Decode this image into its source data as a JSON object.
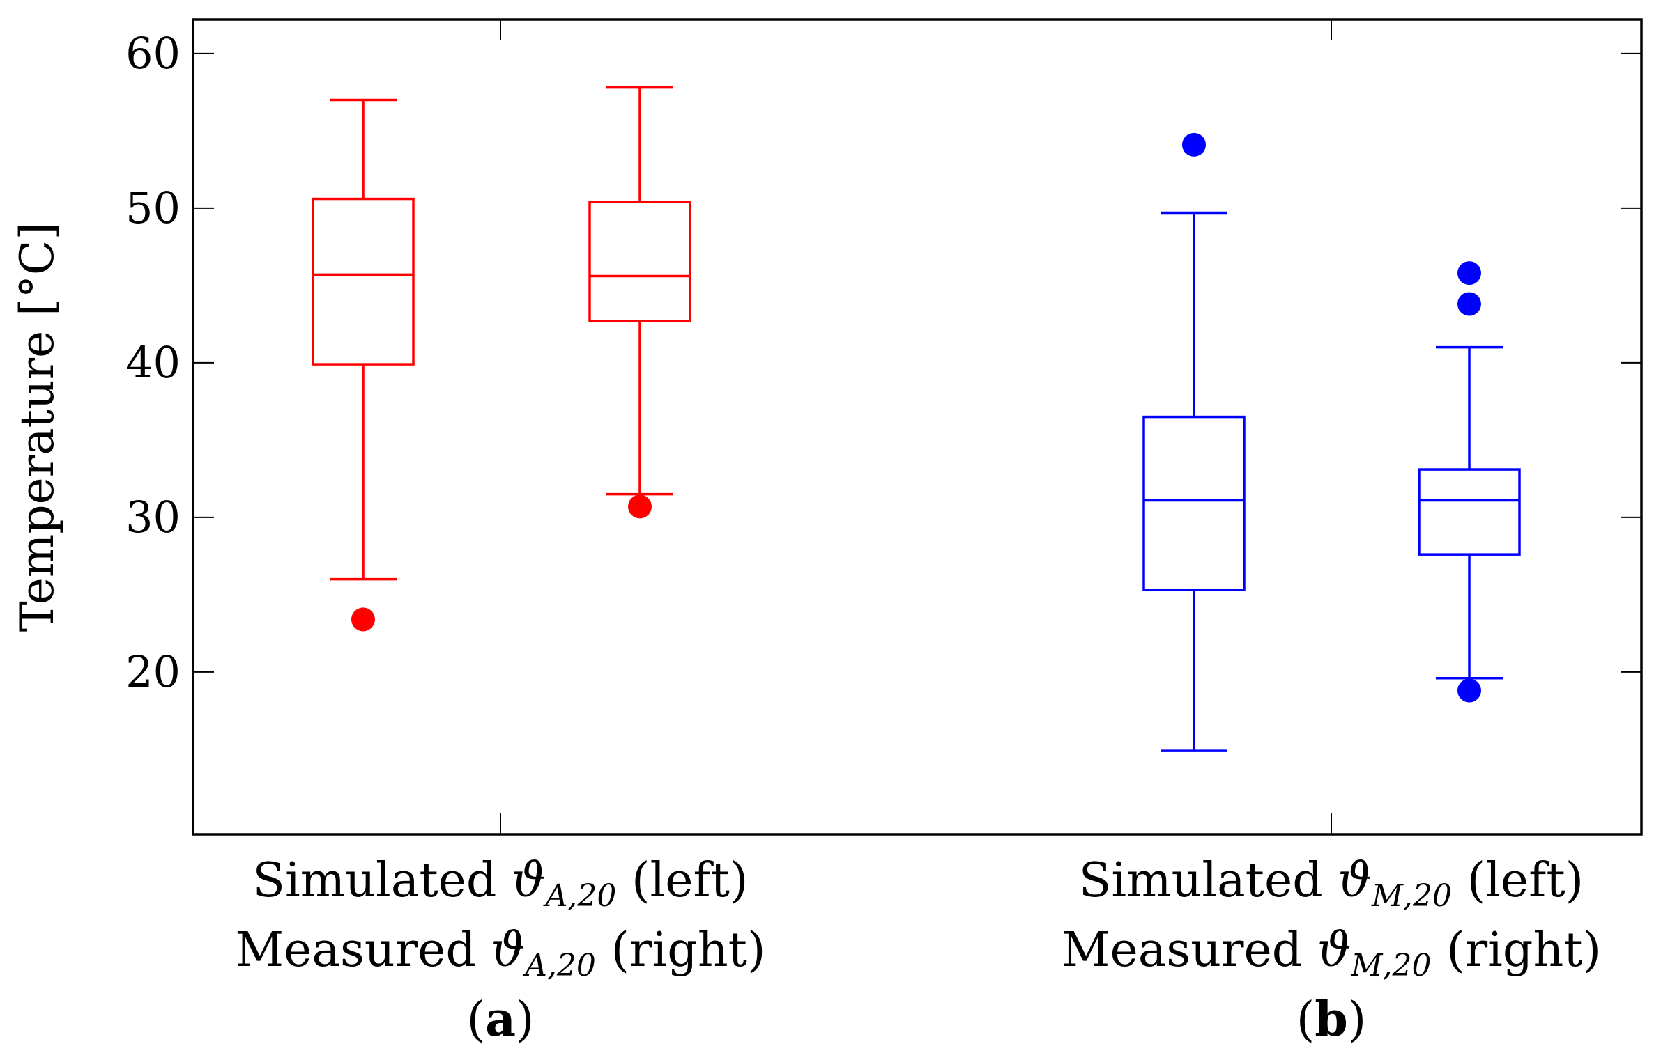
{
  "chart_data": {
    "type": "box",
    "ylabel": "Temperature [°C]",
    "ylim": [
      9.5,
      62.2
    ],
    "yticks": [
      20,
      30,
      40,
      50,
      60
    ],
    "grid": false,
    "groups": [
      {
        "name": "group-a",
        "color": "#ff0000",
        "labels": {
          "line1_pre": "Simulated ",
          "line1_sym": "ϑ",
          "line1_sub": "A,20",
          "line1_post": " (left)",
          "line2_pre": "Measured ",
          "line2_sym": "ϑ",
          "line2_sub": "A,20",
          "line2_post": " (right)",
          "panel_open": "(",
          "panel": "a",
          "panel_close": ")"
        },
        "boxes": [
          {
            "name": "simulated",
            "whisker_low": 26.0,
            "q1": 39.9,
            "median": 45.7,
            "q3": 50.6,
            "whisker_high": 57.0,
            "outliers": [
              23.4
            ]
          },
          {
            "name": "measured",
            "whisker_low": 31.5,
            "q1": 42.7,
            "median": 45.6,
            "q3": 50.4,
            "whisker_high": 57.8,
            "outliers": [
              30.7
            ]
          }
        ]
      },
      {
        "name": "group-b",
        "color": "#0000ff",
        "labels": {
          "line1_pre": "Simulated ",
          "line1_sym": "ϑ",
          "line1_sub": "M,20",
          "line1_post": " (left)",
          "line2_pre": "Measured ",
          "line2_sym": "ϑ",
          "line2_sub": "M,20",
          "line2_post": " (right)",
          "panel_open": "(",
          "panel": "b",
          "panel_close": ")"
        },
        "boxes": [
          {
            "name": "simulated",
            "whisker_low": 14.9,
            "q1": 25.3,
            "median": 31.1,
            "q3": 36.5,
            "whisker_high": 49.7,
            "outliers": [
              54.1
            ]
          },
          {
            "name": "measured",
            "whisker_low": 19.6,
            "q1": 27.6,
            "median": 31.1,
            "q3": 33.1,
            "whisker_high": 41.0,
            "outliers": [
              18.8,
              43.8,
              45.8
            ]
          }
        ]
      }
    ]
  }
}
